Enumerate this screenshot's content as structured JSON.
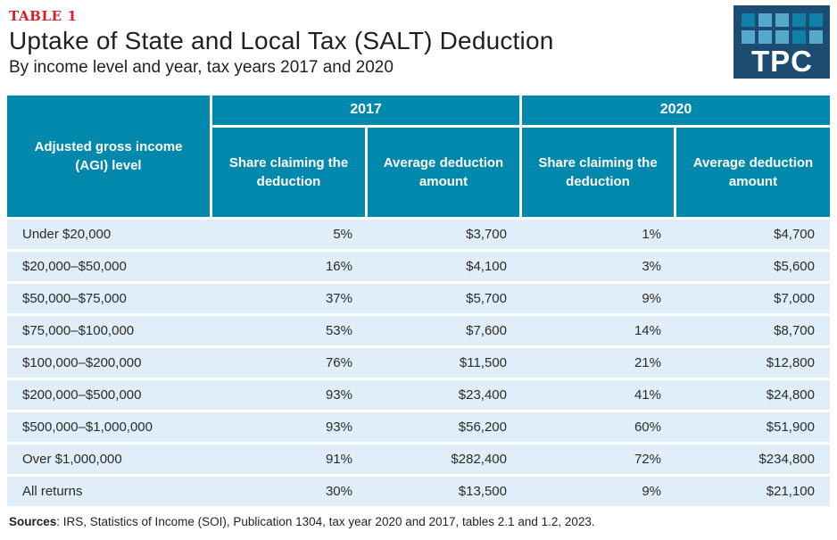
{
  "header": {
    "table_label": "TABLE 1",
    "title": "Uptake of State and Local Tax (SALT) Deduction",
    "subtitle": "By income level and year, tax years 2017 and 2020",
    "logo": {
      "text": "TPC"
    }
  },
  "colors": {
    "header_teal": "#0089ad",
    "row_light_blue": "#dfeef8",
    "table_label_red": "#e11b22",
    "logo_navy": "#1d4c73",
    "logo_square_teal": "#0e81a8",
    "logo_square_light_blue": "#57a9cc",
    "text_dark": "#231f20"
  },
  "table": {
    "row_header": "Adjusted gross income (AGI) level",
    "year_headers": [
      "2017",
      "2020"
    ],
    "sub_headers": [
      "Share claiming the deduction",
      "Average deduction amount",
      "Share claiming the deduction",
      "Average deduction amount"
    ],
    "rows": [
      [
        "Under $20,000",
        "5%",
        "$3,700",
        "1%",
        "$4,700"
      ],
      [
        "$20,000–$50,000",
        "16%",
        "$4,100",
        "3%",
        "$5,600"
      ],
      [
        "$50,000–$75,000",
        "37%",
        "$5,700",
        "9%",
        "$7,000"
      ],
      [
        "$75,000–$100,000",
        "53%",
        "$7,600",
        "14%",
        "$8,700"
      ],
      [
        "$100,000–$200,000",
        "76%",
        "$11,500",
        "21%",
        "$12,800"
      ],
      [
        "$200,000–$500,000",
        "93%",
        "$23,400",
        "41%",
        "$24,800"
      ],
      [
        "$500,000–$1,000,000",
        "93%",
        "$56,200",
        "60%",
        "$51,900"
      ],
      [
        "Over $1,000,000",
        "91%",
        "$282,400",
        "72%",
        "$234,800"
      ],
      [
        "All returns",
        "30%",
        "$13,500",
        "9%",
        "$21,100"
      ]
    ]
  },
  "footer": {
    "sources_label": "Sources",
    "sources_text": ": IRS, Statistics of Income (SOI), Publication 1304, tax year 2020 and 2017, tables 2.1 and 1.2, 2023."
  },
  "chart_data": {
    "type": "table",
    "title": "Uptake of State and Local Tax (SALT) Deduction",
    "subtitle": "By income level and year, tax years 2017 and 2020",
    "categories": [
      "Under $20,000",
      "$20,000–$50,000",
      "$50,000–$75,000",
      "$75,000–$100,000",
      "$100,000–$200,000",
      "$200,000–$500,000",
      "$500,000–$1,000,000",
      "Over $1,000,000",
      "All returns"
    ],
    "series": [
      {
        "name": "2017 Share claiming the deduction (%)",
        "values": [
          5,
          16,
          37,
          53,
          76,
          93,
          93,
          91,
          30
        ]
      },
      {
        "name": "2017 Average deduction amount ($)",
        "values": [
          3700,
          4100,
          5700,
          7600,
          11500,
          23400,
          56200,
          282400,
          13500
        ]
      },
      {
        "name": "2020 Share claiming the deduction (%)",
        "values": [
          1,
          3,
          9,
          14,
          21,
          41,
          60,
          72,
          9
        ]
      },
      {
        "name": "2020 Average deduction amount ($)",
        "values": [
          4700,
          5600,
          7000,
          8700,
          12800,
          24800,
          51900,
          234800,
          21100
        ]
      }
    ]
  }
}
